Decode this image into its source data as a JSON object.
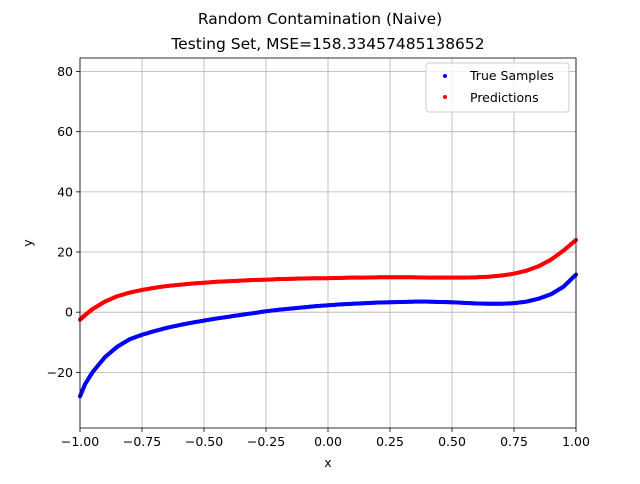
{
  "chart_data": {
    "type": "scatter",
    "title": "Random Contamination (Naive)",
    "subtitle": "Testing Set, MSE=158.33457485138652",
    "xlabel": "x",
    "ylabel": "y",
    "xlim": [
      -1.0,
      1.0
    ],
    "ylim": [
      -38.5,
      84.5
    ],
    "x_ticks": [
      -1.0,
      -0.75,
      -0.5,
      -0.25,
      0.0,
      0.25,
      0.5,
      0.75,
      1.0
    ],
    "x_tick_labels": [
      "−1.00",
      "−0.75",
      "−0.50",
      "−0.25",
      "0.00",
      "0.25",
      "0.50",
      "0.75",
      "1.00"
    ],
    "y_ticks": [
      -20,
      0,
      20,
      40,
      60,
      80
    ],
    "y_tick_labels": [
      "−20",
      "0",
      "20",
      "40",
      "60",
      "80"
    ],
    "grid": true,
    "legend_position": "upper right",
    "series": [
      {
        "name": "True Samples",
        "color": "#0000ff",
        "x": [
          -1.0,
          -0.98,
          -0.95,
          -0.9,
          -0.85,
          -0.8,
          -0.75,
          -0.7,
          -0.65,
          -0.6,
          -0.55,
          -0.5,
          -0.45,
          -0.4,
          -0.35,
          -0.3,
          -0.25,
          -0.2,
          -0.15,
          -0.1,
          -0.05,
          0.0,
          0.05,
          0.1,
          0.15,
          0.2,
          0.25,
          0.3,
          0.35,
          0.4,
          0.45,
          0.5,
          0.55,
          0.6,
          0.65,
          0.7,
          0.75,
          0.8,
          0.85,
          0.9,
          0.95,
          1.0
        ],
        "y": [
          -28,
          -24,
          -20,
          -15,
          -11.5,
          -9,
          -7.5,
          -6.3,
          -5.2,
          -4.3,
          -3.5,
          -2.8,
          -2.1,
          -1.5,
          -0.9,
          -0.3,
          0.3,
          0.8,
          1.2,
          1.6,
          2.0,
          2.3,
          2.6,
          2.8,
          3.0,
          3.2,
          3.3,
          3.4,
          3.5,
          3.5,
          3.4,
          3.3,
          3.1,
          2.9,
          2.8,
          2.8,
          3.0,
          3.5,
          4.5,
          6.0,
          8.5,
          12.5
        ]
      },
      {
        "name": "Predictions",
        "color": "#ff0000",
        "x": [
          -1.0,
          -0.98,
          -0.95,
          -0.9,
          -0.85,
          -0.8,
          -0.75,
          -0.7,
          -0.65,
          -0.6,
          -0.55,
          -0.5,
          -0.45,
          -0.4,
          -0.35,
          -0.3,
          -0.25,
          -0.2,
          -0.15,
          -0.1,
          -0.05,
          0.0,
          0.05,
          0.1,
          0.15,
          0.2,
          0.25,
          0.3,
          0.35,
          0.4,
          0.45,
          0.5,
          0.55,
          0.6,
          0.65,
          0.7,
          0.75,
          0.8,
          0.85,
          0.9,
          0.95,
          1.0
        ],
        "y": [
          -2.5,
          -1.0,
          1.0,
          3.5,
          5.3,
          6.5,
          7.4,
          8.1,
          8.7,
          9.1,
          9.5,
          9.8,
          10.1,
          10.3,
          10.5,
          10.7,
          10.8,
          11.0,
          11.1,
          11.2,
          11.3,
          11.3,
          11.4,
          11.5,
          11.5,
          11.6,
          11.6,
          11.6,
          11.6,
          11.5,
          11.5,
          11.5,
          11.5,
          11.6,
          11.8,
          12.2,
          12.8,
          13.8,
          15.3,
          17.5,
          20.5,
          24.0
        ]
      }
    ]
  }
}
